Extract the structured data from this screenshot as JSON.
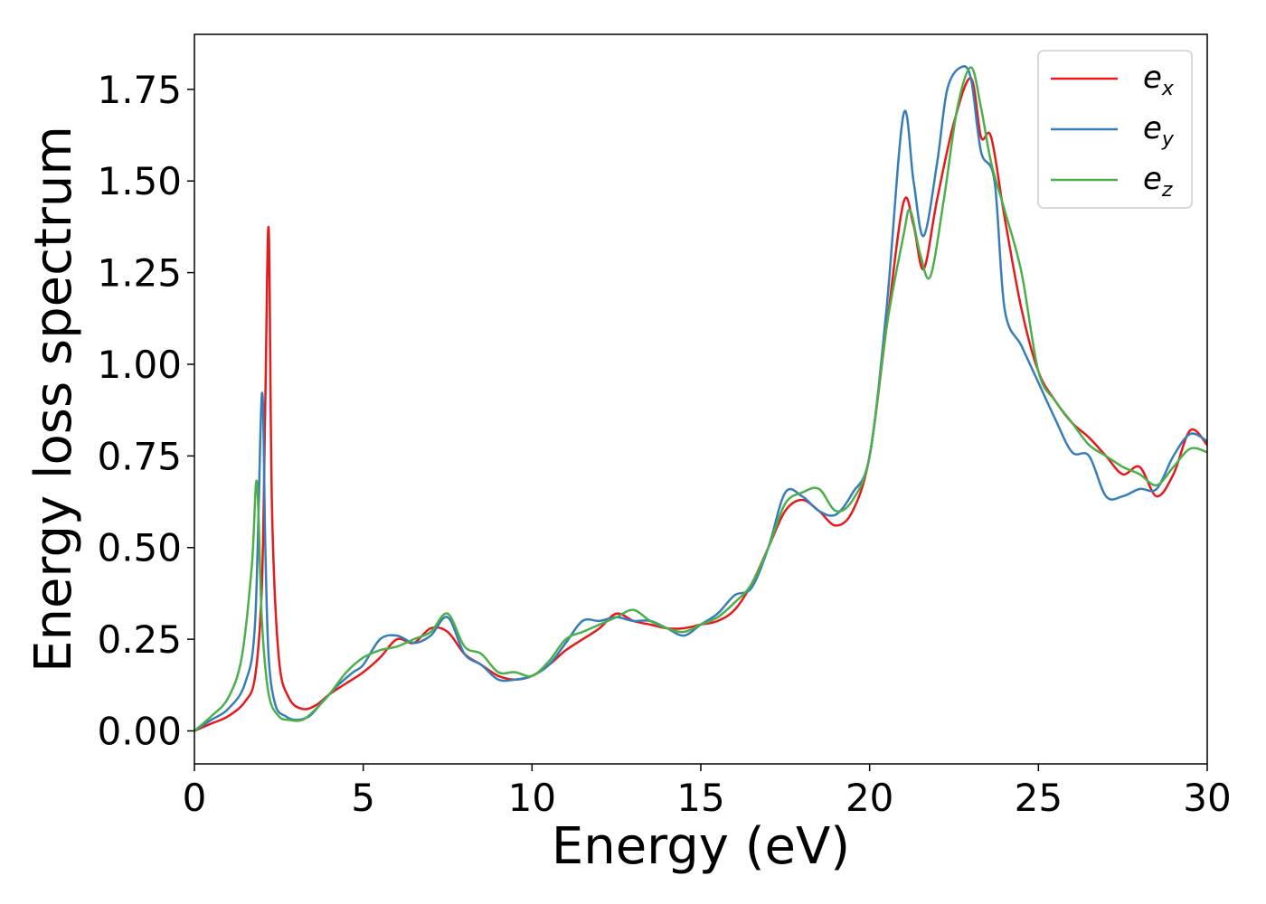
{
  "chart_data": {
    "type": "line",
    "xlabel": "Energy (eV)",
    "ylabel": "Energy loss spectrum",
    "xlim": [
      0,
      30
    ],
    "ylim": [
      -0.09,
      1.9
    ],
    "xticks": [
      0,
      5,
      10,
      15,
      20,
      25,
      30
    ],
    "xtick_labels": [
      "0",
      "5",
      "10",
      "15",
      "20",
      "25",
      "30"
    ],
    "yticks": [
      0,
      0.25,
      0.5,
      0.75,
      1.0,
      1.25,
      1.5,
      1.75
    ],
    "ytick_labels": [
      "0.00",
      "0.25",
      "0.50",
      "0.75",
      "1.00",
      "1.25",
      "1.50",
      "1.75"
    ],
    "grid": false,
    "legend_position": "top-right",
    "series": [
      {
        "name": "e_x",
        "label_base": "e",
        "label_sub": "x",
        "color": "#e41a1c",
        "x": [
          0,
          0.5,
          1.0,
          1.5,
          1.8,
          2.0,
          2.1,
          2.2,
          2.3,
          2.5,
          2.8,
          3.2,
          3.6,
          4.0,
          4.5,
          5.0,
          5.5,
          6.0,
          6.5,
          7.0,
          7.5,
          8.0,
          8.5,
          9.0,
          9.5,
          10.0,
          10.5,
          11.0,
          11.5,
          12.0,
          12.5,
          13.0,
          13.5,
          14.0,
          14.5,
          15.0,
          15.5,
          16.0,
          16.5,
          17.0,
          17.5,
          18.0,
          18.5,
          19.0,
          19.5,
          20.0,
          20.5,
          21.0,
          21.3,
          21.6,
          22.0,
          22.5,
          23.0,
          23.3,
          23.6,
          24.0,
          24.5,
          25.0,
          25.5,
          26.0,
          26.5,
          27.0,
          27.5,
          28.0,
          28.5,
          29.0,
          29.5,
          30.0
        ],
        "y": [
          0,
          0.02,
          0.04,
          0.08,
          0.15,
          0.4,
          0.9,
          1.37,
          0.6,
          0.2,
          0.09,
          0.06,
          0.07,
          0.1,
          0.13,
          0.16,
          0.2,
          0.25,
          0.24,
          0.28,
          0.27,
          0.21,
          0.18,
          0.15,
          0.14,
          0.15,
          0.18,
          0.22,
          0.25,
          0.28,
          0.32,
          0.3,
          0.29,
          0.28,
          0.28,
          0.29,
          0.3,
          0.33,
          0.4,
          0.5,
          0.6,
          0.63,
          0.6,
          0.56,
          0.6,
          0.75,
          1.1,
          1.44,
          1.38,
          1.26,
          1.45,
          1.66,
          1.78,
          1.62,
          1.62,
          1.4,
          1.15,
          0.98,
          0.9,
          0.84,
          0.8,
          0.75,
          0.7,
          0.72,
          0.64,
          0.7,
          0.82,
          0.78
        ]
      },
      {
        "name": "e_y",
        "label_base": "e",
        "label_sub": "y",
        "color": "#377eb8",
        "x": [
          0,
          0.5,
          1.0,
          1.5,
          1.8,
          2.0,
          2.1,
          2.2,
          2.4,
          2.7,
          3.0,
          3.4,
          3.8,
          4.2,
          4.7,
          5.0,
          5.5,
          6.0,
          6.5,
          7.0,
          7.5,
          8.0,
          8.5,
          9.0,
          9.5,
          10.0,
          10.5,
          11.0,
          11.5,
          12.0,
          12.5,
          13.0,
          13.5,
          14.0,
          14.5,
          15.0,
          15.5,
          16.0,
          16.5,
          17.0,
          17.5,
          18.0,
          18.5,
          19.0,
          19.5,
          20.0,
          20.5,
          21.0,
          21.3,
          21.6,
          22.0,
          22.3,
          22.7,
          23.0,
          23.3,
          23.7,
          24.0,
          24.5,
          25.0,
          25.5,
          26.0,
          26.5,
          27.0,
          27.5,
          28.0,
          28.5,
          29.0,
          29.5,
          30.0
        ],
        "y": [
          0,
          0.03,
          0.06,
          0.13,
          0.3,
          0.92,
          0.5,
          0.2,
          0.07,
          0.04,
          0.03,
          0.04,
          0.08,
          0.12,
          0.16,
          0.18,
          0.25,
          0.26,
          0.24,
          0.26,
          0.31,
          0.21,
          0.18,
          0.14,
          0.14,
          0.15,
          0.18,
          0.24,
          0.3,
          0.3,
          0.31,
          0.3,
          0.3,
          0.28,
          0.26,
          0.29,
          0.32,
          0.37,
          0.39,
          0.5,
          0.65,
          0.64,
          0.6,
          0.59,
          0.65,
          0.75,
          1.15,
          1.68,
          1.5,
          1.35,
          1.55,
          1.75,
          1.81,
          1.78,
          1.58,
          1.5,
          1.15,
          1.05,
          0.95,
          0.85,
          0.76,
          0.75,
          0.64,
          0.64,
          0.66,
          0.66,
          0.75,
          0.81,
          0.79
        ]
      },
      {
        "name": "e_z",
        "label_base": "e",
        "label_sub": "z",
        "color": "#4daf4a",
        "x": [
          0,
          0.5,
          1.0,
          1.4,
          1.7,
          1.85,
          2.0,
          2.2,
          2.5,
          2.8,
          3.2,
          3.6,
          4.0,
          4.5,
          5.0,
          5.5,
          6.0,
          6.5,
          7.0,
          7.5,
          8.0,
          8.5,
          9.0,
          9.5,
          10.0,
          10.5,
          11.0,
          11.5,
          12.0,
          12.5,
          13.0,
          13.5,
          14.0,
          14.5,
          15.0,
          15.5,
          16.0,
          16.5,
          17.0,
          17.5,
          18.0,
          18.5,
          19.0,
          19.5,
          20.0,
          20.5,
          21.0,
          21.2,
          21.5,
          21.8,
          22.2,
          22.6,
          23.0,
          23.3,
          23.6,
          24.0,
          24.5,
          25.0,
          25.5,
          26.0,
          26.5,
          27.0,
          27.5,
          28.0,
          28.5,
          29.0,
          29.5,
          30.0
        ],
        "y": [
          0,
          0.04,
          0.09,
          0.2,
          0.45,
          0.68,
          0.3,
          0.1,
          0.04,
          0.03,
          0.03,
          0.06,
          0.1,
          0.16,
          0.2,
          0.22,
          0.23,
          0.25,
          0.27,
          0.32,
          0.23,
          0.21,
          0.16,
          0.16,
          0.15,
          0.19,
          0.25,
          0.27,
          0.29,
          0.31,
          0.33,
          0.3,
          0.28,
          0.27,
          0.29,
          0.31,
          0.35,
          0.4,
          0.5,
          0.62,
          0.65,
          0.66,
          0.6,
          0.63,
          0.75,
          1.1,
          1.35,
          1.42,
          1.3,
          1.24,
          1.45,
          1.7,
          1.81,
          1.7,
          1.55,
          1.42,
          1.25,
          0.98,
          0.9,
          0.84,
          0.78,
          0.75,
          0.72,
          0.7,
          0.67,
          0.72,
          0.77,
          0.76
        ]
      }
    ]
  }
}
